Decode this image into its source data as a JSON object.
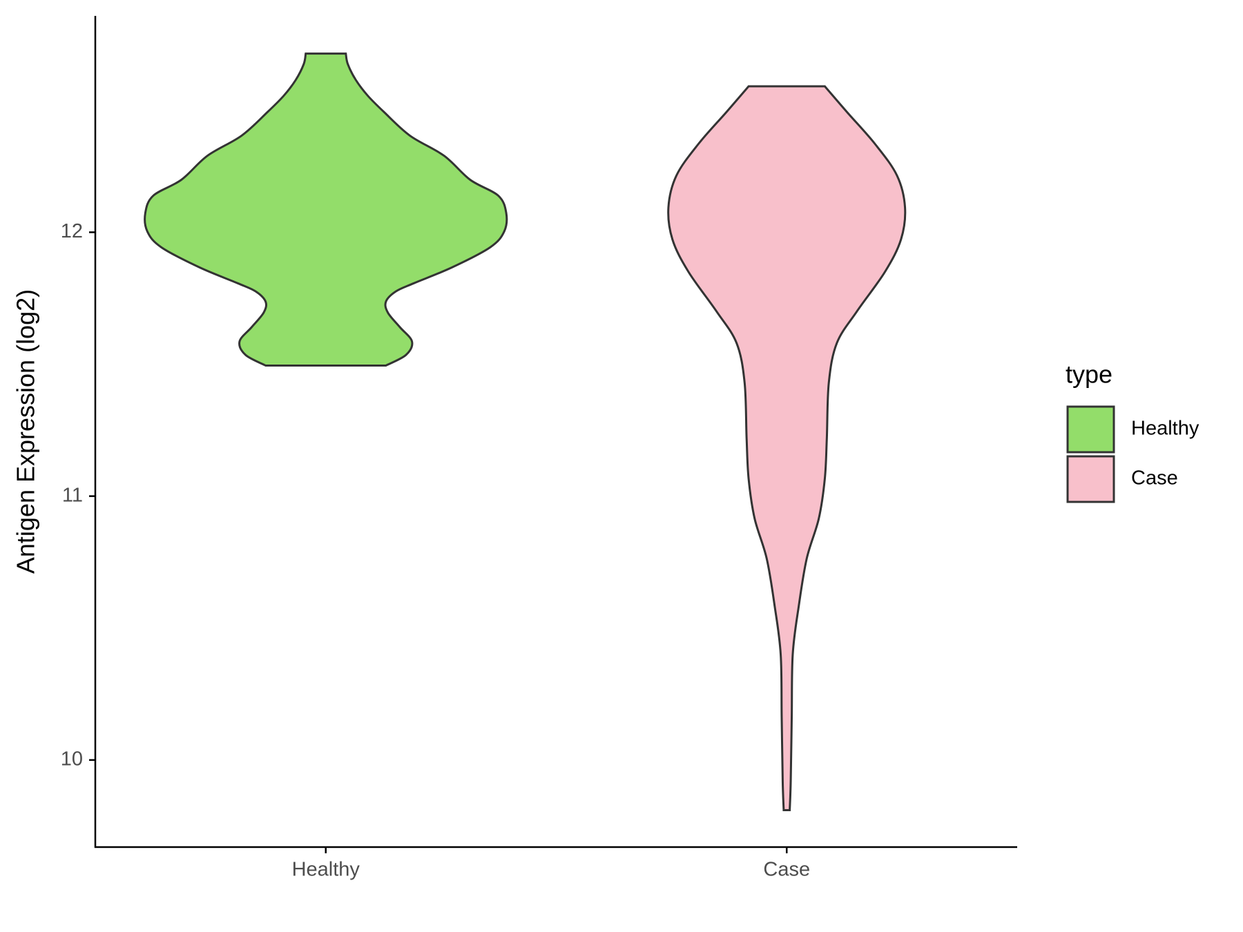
{
  "chart_data": {
    "type": "violin",
    "y_label": "Antigen Expression (log2)",
    "categories": [
      "Healthy",
      "Case"
    ],
    "legend_title": "type",
    "legend_position": "right",
    "ylim": [
      9.67,
      12.82
    ],
    "yticks": [
      10,
      11,
      12
    ],
    "series": [
      {
        "name": "Healthy",
        "color": "#93dd6a",
        "y": [
          11.495,
          11.535,
          11.586,
          11.64,
          11.695,
          11.737,
          11.776,
          11.807,
          11.867,
          11.943,
          12.003,
          12.073,
          12.139,
          12.199,
          12.29,
          12.366,
          12.456,
          12.517,
          12.577,
          12.637,
          12.677
        ],
        "width": [
          0.3,
          0.4,
          0.43,
          0.37,
          0.31,
          0.3,
          0.35,
          0.44,
          0.63,
          0.82,
          0.89,
          0.9,
          0.86,
          0.72,
          0.59,
          0.42,
          0.29,
          0.21,
          0.15,
          0.11,
          0.1
        ]
      },
      {
        "name": "Case",
        "color": "#f8c0cb",
        "y": [
          9.81,
          9.918,
          10.16,
          10.4,
          10.583,
          10.764,
          10.915,
          11.066,
          11.218,
          11.43,
          11.58,
          11.7,
          11.85,
          11.973,
          12.094,
          12.215,
          12.335,
          12.456,
          12.553
        ],
        "width": [
          0.015,
          0.02,
          0.025,
          0.03,
          0.06,
          0.1,
          0.16,
          0.19,
          0.2,
          0.21,
          0.25,
          0.35,
          0.49,
          0.57,
          0.59,
          0.55,
          0.44,
          0.3,
          0.19
        ]
      }
    ]
  }
}
